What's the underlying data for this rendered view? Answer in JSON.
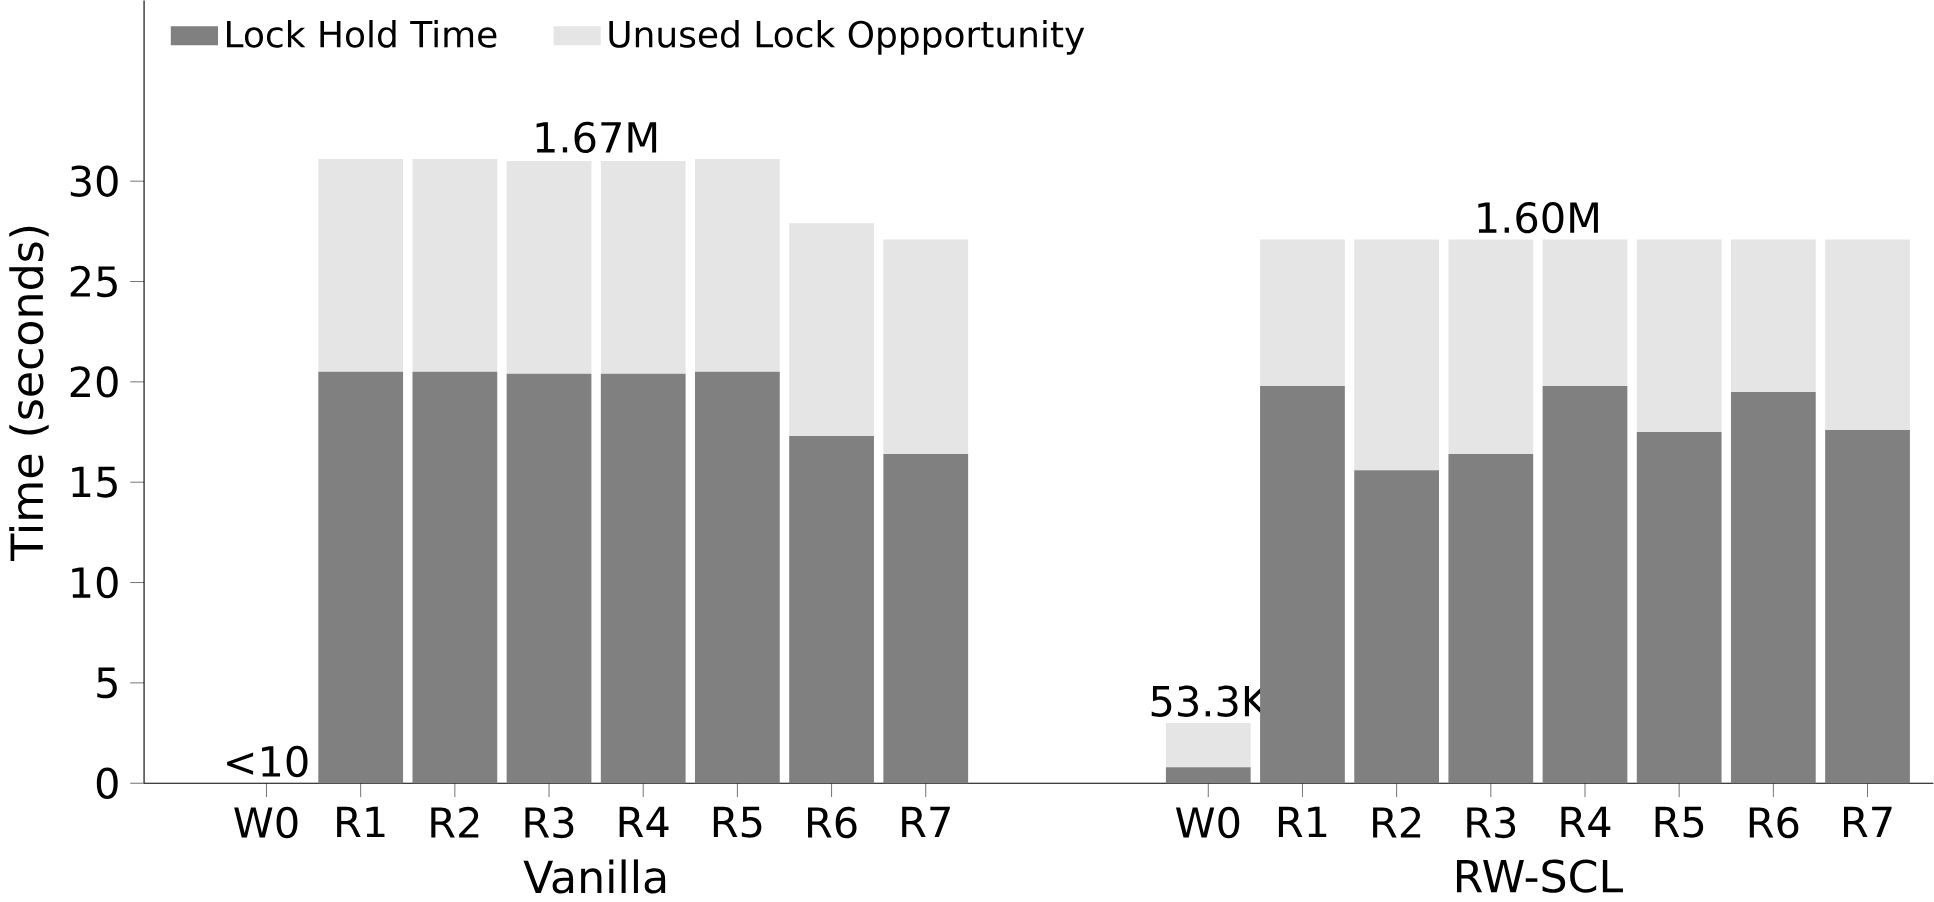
{
  "chart_data": {
    "type": "bar",
    "stacked": true,
    "ylabel": "Time (seconds)",
    "categories": [
      "W0",
      "R1",
      "R2",
      "R3",
      "R4",
      "R5",
      "R6",
      "R7",
      null,
      null,
      "W0",
      "R1",
      "R2",
      "R3",
      "R4",
      "R5",
      "R6",
      "R7"
    ],
    "series": [
      {
        "name": "Lock Hold Time",
        "color": "#808080",
        "values": [
          0,
          20.5,
          20.5,
          20.4,
          20.4,
          20.5,
          17.3,
          16.4,
          null,
          null,
          0.8,
          19.8,
          15.6,
          16.4,
          19.8,
          17.5,
          19.5,
          17.6
        ]
      },
      {
        "name": "Unused Lock Oppportunity",
        "color": "#e5e5e5",
        "values": [
          0,
          10.6,
          10.6,
          10.6,
          10.6,
          10.6,
          10.6,
          10.7,
          null,
          null,
          2.2,
          7.3,
          11.5,
          10.7,
          7.3,
          9.6,
          7.6,
          9.5
        ]
      }
    ],
    "ylim": [
      0,
      39
    ],
    "yticks": [
      0,
      5,
      10,
      15,
      20,
      25,
      30
    ],
    "legend": "top left",
    "annotations": [
      "<10",
      "1.67M",
      "53.3K",
      "1.60M",
      "Vanilla",
      "RW-SCL"
    ]
  }
}
